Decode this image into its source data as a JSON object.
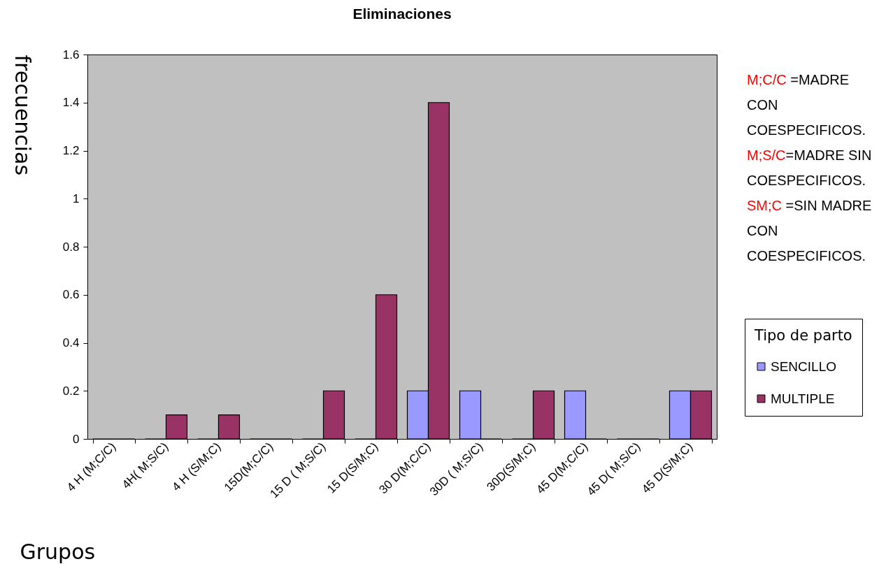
{
  "chart_data": {
    "type": "bar",
    "title": "Eliminaciones",
    "xlabel": "Grupos",
    "ylabel": "frecuencias",
    "legend_title": "Tipo de parto",
    "legend": "right",
    "categories": [
      "4 H (M;C/C)",
      "4H( M;S/C)",
      "4 H (S/M;C)",
      "15D(M;C/C)",
      "15 D ( M;S/C)",
      "15 D(S/M;C)",
      "30 D(M;C/C)",
      "30D ( M;S/C)",
      "30D(S/M;C)",
      "45 D(M;C/C)",
      "45 D( M;S/C)",
      "45 D(S/M;C)"
    ],
    "series": [
      {
        "name": "SENCILLO",
        "color": "#9999ff",
        "values": [
          0,
          0,
          0,
          0,
          0,
          0,
          0.2,
          0.2,
          0,
          0.2,
          0,
          0.2
        ]
      },
      {
        "name": "MULTIPLE",
        "color": "#993366",
        "values": [
          0,
          0.1,
          0.1,
          0,
          0.2,
          0.6,
          1.4,
          0,
          0.2,
          0,
          0,
          0.2
        ]
      }
    ],
    "ylim": [
      0,
      1.6
    ],
    "yticks": [
      0,
      0.2,
      0.4,
      0.6,
      0.8,
      1,
      1.2,
      1.4,
      1.6
    ],
    "grid": false,
    "annotations": [
      "M;C/C =MADRE CON COESPECIFICOS.",
      "M;S/C=MADRE SIN COESPECIFICOS.",
      "SM;C =SIN MADRE CON COESPECIFICOS."
    ]
  }
}
